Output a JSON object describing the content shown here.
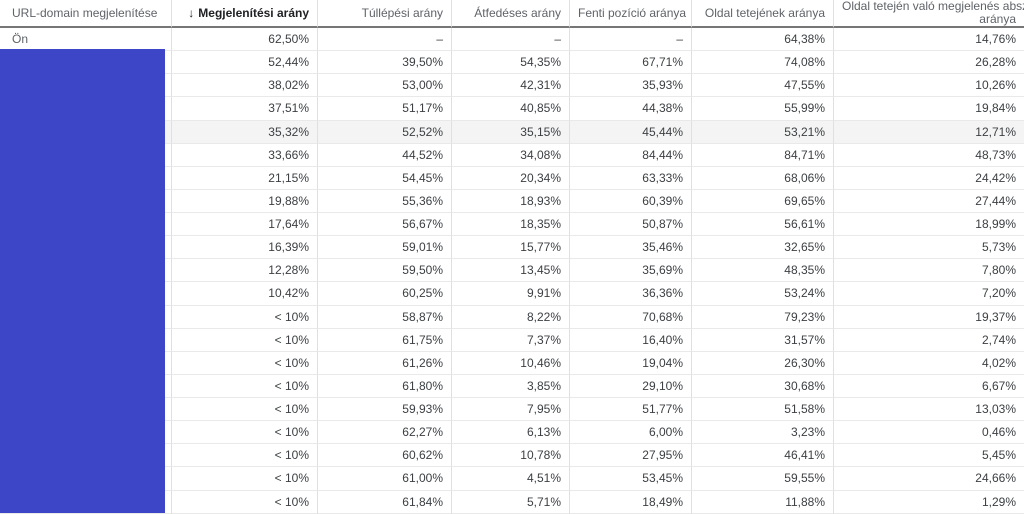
{
  "table": {
    "sort_icon": "↓",
    "columns": [
      {
        "label": "URL-domain megjelenítése"
      },
      {
        "label": "Megjelenítési arány",
        "sorted": true
      },
      {
        "label": "Túllépési arány"
      },
      {
        "label": "Átfedéses arány"
      },
      {
        "label": "Fenti pozíció aránya"
      },
      {
        "label": "Oldal tetejének aránya"
      },
      {
        "label": "Oldal tetején való megjelenés absz. aránya",
        "lines": [
          "Oldal tetején való megjelenés absz.",
          "aránya"
        ]
      }
    ],
    "rows": [
      {
        "domain": "Ön",
        "redacted": false,
        "highlighted": false,
        "values": [
          "62,50%",
          "–",
          "–",
          "–",
          "64,38%",
          "14,76%"
        ]
      },
      {
        "domain": "",
        "redacted": true,
        "highlighted": false,
        "values": [
          "52,44%",
          "39,50%",
          "54,35%",
          "67,71%",
          "74,08%",
          "26,28%"
        ]
      },
      {
        "domain": "",
        "redacted": true,
        "highlighted": false,
        "values": [
          "38,02%",
          "53,00%",
          "42,31%",
          "35,93%",
          "47,55%",
          "10,26%"
        ]
      },
      {
        "domain": "",
        "redacted": true,
        "highlighted": false,
        "values": [
          "37,51%",
          "51,17%",
          "40,85%",
          "44,38%",
          "55,99%",
          "19,84%"
        ]
      },
      {
        "domain": "",
        "redacted": true,
        "highlighted": true,
        "values": [
          "35,32%",
          "52,52%",
          "35,15%",
          "45,44%",
          "53,21%",
          "12,71%"
        ]
      },
      {
        "domain": "",
        "redacted": true,
        "highlighted": false,
        "values": [
          "33,66%",
          "44,52%",
          "34,08%",
          "84,44%",
          "84,71%",
          "48,73%"
        ]
      },
      {
        "domain": "",
        "redacted": true,
        "highlighted": false,
        "values": [
          "21,15%",
          "54,45%",
          "20,34%",
          "63,33%",
          "68,06%",
          "24,42%"
        ]
      },
      {
        "domain": "",
        "redacted": true,
        "highlighted": false,
        "values": [
          "19,88%",
          "55,36%",
          "18,93%",
          "60,39%",
          "69,65%",
          "27,44%"
        ]
      },
      {
        "domain": "",
        "redacted": true,
        "highlighted": false,
        "values": [
          "17,64%",
          "56,67%",
          "18,35%",
          "50,87%",
          "56,61%",
          "18,99%"
        ]
      },
      {
        "domain": "",
        "redacted": true,
        "highlighted": false,
        "values": [
          "16,39%",
          "59,01%",
          "15,77%",
          "35,46%",
          "32,65%",
          "5,73%"
        ]
      },
      {
        "domain": "",
        "redacted": true,
        "highlighted": false,
        "values": [
          "12,28%",
          "59,50%",
          "13,45%",
          "35,69%",
          "48,35%",
          "7,80%"
        ]
      },
      {
        "domain": "",
        "redacted": true,
        "highlighted": false,
        "values": [
          "10,42%",
          "60,25%",
          "9,91%",
          "36,36%",
          "53,24%",
          "7,20%"
        ]
      },
      {
        "domain": "",
        "redacted": true,
        "highlighted": false,
        "values": [
          "< 10%",
          "58,87%",
          "8,22%",
          "70,68%",
          "79,23%",
          "19,37%"
        ]
      },
      {
        "domain": "",
        "redacted": true,
        "highlighted": false,
        "values": [
          "< 10%",
          "61,75%",
          "7,37%",
          "16,40%",
          "31,57%",
          "2,74%"
        ]
      },
      {
        "domain": "",
        "redacted": true,
        "highlighted": false,
        "values": [
          "< 10%",
          "61,26%",
          "10,46%",
          "19,04%",
          "26,30%",
          "4,02%"
        ]
      },
      {
        "domain": "",
        "redacted": true,
        "highlighted": false,
        "values": [
          "< 10%",
          "61,80%",
          "3,85%",
          "29,10%",
          "30,68%",
          "6,67%"
        ]
      },
      {
        "domain": "",
        "redacted": true,
        "highlighted": false,
        "values": [
          "< 10%",
          "59,93%",
          "7,95%",
          "51,77%",
          "51,58%",
          "13,03%"
        ]
      },
      {
        "domain": "",
        "redacted": true,
        "highlighted": false,
        "values": [
          "< 10%",
          "62,27%",
          "6,13%",
          "6,00%",
          "3,23%",
          "0,46%"
        ]
      },
      {
        "domain": "",
        "redacted": true,
        "highlighted": false,
        "values": [
          "< 10%",
          "60,62%",
          "10,78%",
          "27,95%",
          "46,41%",
          "5,45%"
        ]
      },
      {
        "domain": "",
        "redacted": true,
        "highlighted": false,
        "values": [
          "< 10%",
          "61,00%",
          "4,51%",
          "53,45%",
          "59,55%",
          "24,66%"
        ]
      },
      {
        "domain": "",
        "redacted": true,
        "highlighted": false,
        "values": [
          "< 10%",
          "61,84%",
          "5,71%",
          "18,49%",
          "11,88%",
          "1,29%"
        ]
      }
    ]
  },
  "colors": {
    "redaction_blue": "#3e46c8",
    "header_text": "#5f6368",
    "header_sorted_text": "#202124",
    "cell_text": "#3c4043",
    "highlight_row_bg": "#f4f4f4",
    "header_border": "#767676",
    "grid_border": "#e0e0e0"
  }
}
